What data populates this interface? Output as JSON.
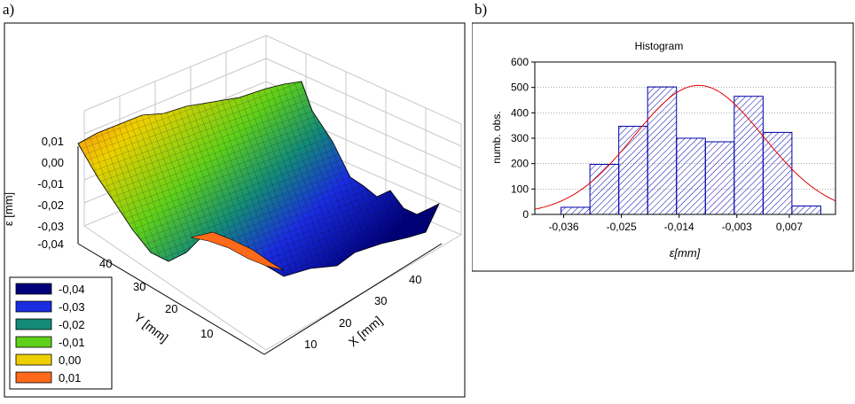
{
  "panels": {
    "a_label": "a)",
    "b_label": "b)"
  },
  "chart_data": [
    {
      "type": "surface3d",
      "title": "",
      "z_axis": {
        "label": "ε [mm]",
        "ticks": [
          "0,01",
          "0,00",
          "-0,01",
          "-0,02",
          "-0,03",
          "-0,04"
        ]
      },
      "y_axis": {
        "label": "Y [mm]",
        "ticks": [
          "40",
          "30",
          "20",
          "10"
        ]
      },
      "x_axis": {
        "label": "X [mm]",
        "ticks": [
          "10",
          "20",
          "30",
          "40"
        ]
      },
      "colormap": [
        {
          "label": "-0,04",
          "color": "#00007a"
        },
        {
          "label": "-0,03",
          "color": "#1a2de0"
        },
        {
          "label": "-0,02",
          "color": "#138a7a"
        },
        {
          "label": "-0,01",
          "color": "#5fd01a"
        },
        {
          "label": "0,00",
          "color": "#eed000"
        },
        {
          "label": "0,01",
          "color": "#ff6a1a"
        }
      ],
      "legend_position": "bottom-left"
    },
    {
      "type": "histogram",
      "title": "Histogram",
      "xlabel": "ε[mm]",
      "ylabel": "numb. obs.",
      "ylim": [
        0,
        600
      ],
      "y_ticks": [
        0,
        100,
        200,
        300,
        400,
        500,
        600
      ],
      "x_ticks": [
        "-0,036",
        "-0,025",
        "-0,014",
        "-0,003",
        "0,007"
      ],
      "bins": [
        {
          "from": -0.0365,
          "to": -0.031,
          "count": 28
        },
        {
          "from": -0.031,
          "to": -0.0255,
          "count": 197
        },
        {
          "from": -0.0255,
          "to": -0.02,
          "count": 347
        },
        {
          "from": -0.02,
          "to": -0.0145,
          "count": 502
        },
        {
          "from": -0.0145,
          "to": -0.009,
          "count": 300
        },
        {
          "from": -0.009,
          "to": -0.0035,
          "count": 286
        },
        {
          "from": -0.0035,
          "to": 0.002,
          "count": 465
        },
        {
          "from": 0.002,
          "to": 0.0075,
          "count": 323
        },
        {
          "from": 0.0075,
          "to": 0.013,
          "count": 33
        }
      ],
      "normal_fit": {
        "mean": -0.0103,
        "peak": 508,
        "sigma": 0.0123,
        "color": "#e00000"
      },
      "bar_color": "#0000aa",
      "grid": true
    }
  ]
}
